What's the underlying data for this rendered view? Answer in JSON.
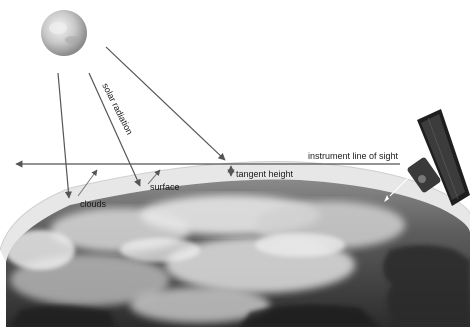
{
  "labels": {
    "solar_radiation": "solar radiation",
    "instrument_line_of_sight": "instrument line of sight",
    "tangent_height": "tangent height",
    "surface": "surface",
    "clouds": "clouds"
  },
  "icons": {
    "sun": "sun-icon",
    "satellite": "satellite-icon"
  },
  "colors": {
    "background": "#ffffff",
    "arrow": "#555555",
    "ocean": "#3a3a3a",
    "atmosphere": "#dcdcdc"
  }
}
